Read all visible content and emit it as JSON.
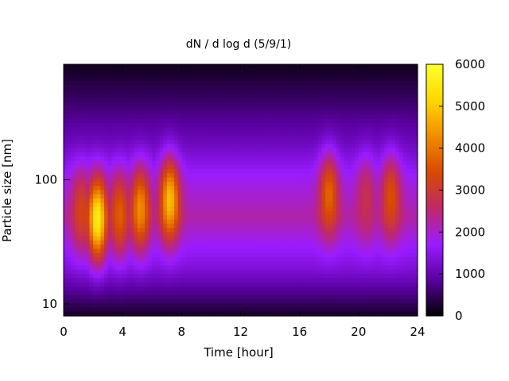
{
  "chart_data": {
    "type": "heatmap",
    "title": "dN / d log d (5/9/1)",
    "xlabel": "Time [hour]",
    "ylabel": "Particle size [nm]",
    "xlim": [
      0,
      24
    ],
    "xticks": [
      0,
      4,
      8,
      12,
      16,
      20,
      24
    ],
    "ylim": [
      8,
      850
    ],
    "yscale": "log",
    "yticks": [
      10,
      100
    ],
    "colorbar": {
      "min": 0,
      "max": 6000,
      "ticks": [
        0,
        1000,
        2000,
        3000,
        4000,
        5000,
        6000
      ],
      "colors": [
        "#000000",
        "#5a00a0",
        "#9a1cff",
        "#c02868",
        "#d84a00",
        "#f08c00",
        "#ffd800",
        "#ffff30"
      ]
    },
    "background_level": {
      "size_nm": [
        8,
        20,
        50,
        100,
        200,
        400,
        850
      ],
      "value": [
        200,
        1400,
        2200,
        1800,
        1100,
        600,
        150
      ]
    },
    "hotspots": [
      {
        "time_h": 2.3,
        "size_nm": 48,
        "value": 5600
      },
      {
        "time_h": 1.2,
        "size_nm": 55,
        "value": 3300
      },
      {
        "time_h": 3.8,
        "size_nm": 52,
        "value": 3700
      },
      {
        "time_h": 5.2,
        "size_nm": 58,
        "value": 4300
      },
      {
        "time_h": 7.2,
        "size_nm": 68,
        "value": 4900
      },
      {
        "time_h": 18.0,
        "size_nm": 75,
        "value": 3800
      },
      {
        "time_h": 20.5,
        "size_nm": 70,
        "value": 2800
      },
      {
        "time_h": 22.2,
        "size_nm": 72,
        "value": 3500
      }
    ]
  }
}
